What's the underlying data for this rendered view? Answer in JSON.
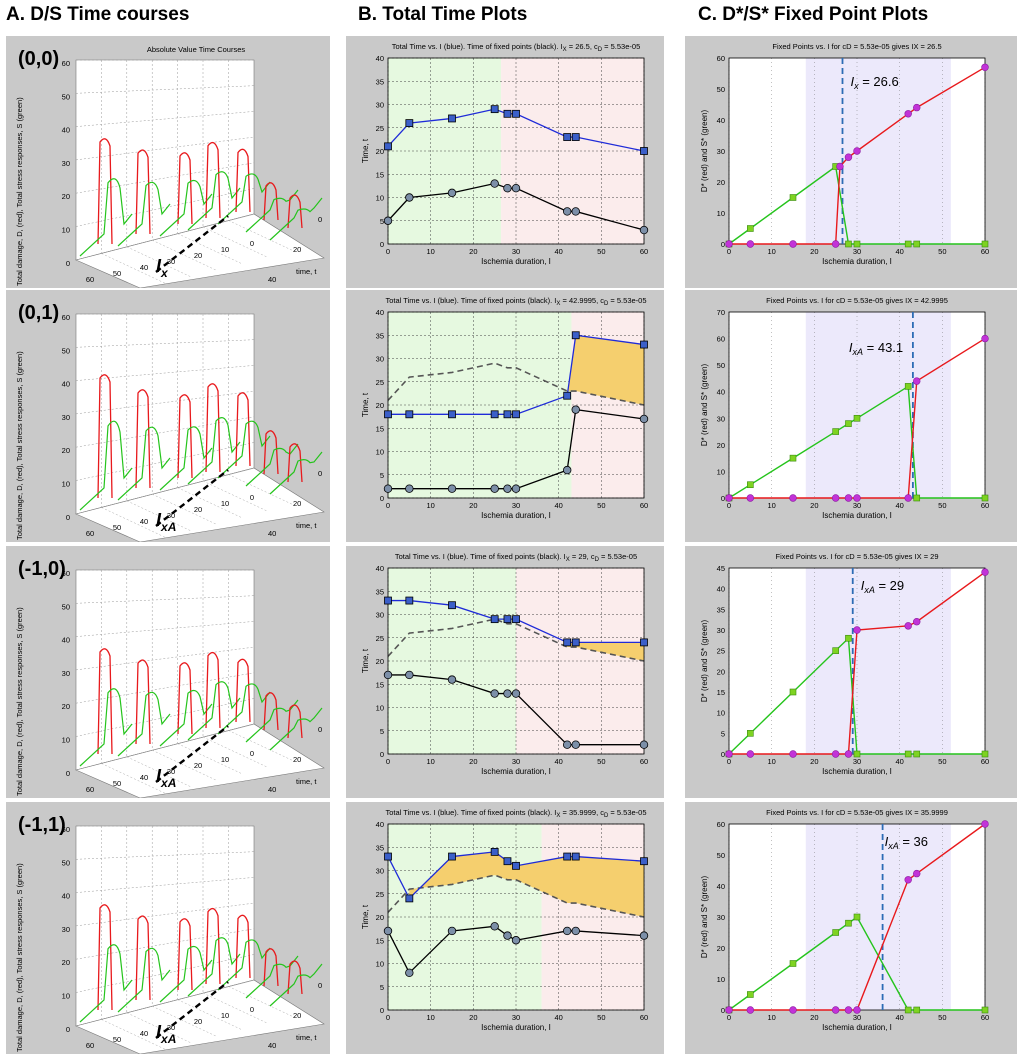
{
  "headers": {
    "col_a": "A. D/S Time courses",
    "col_b": "B. Total Time Plots",
    "col_c": "C. D*/S* Fixed Point Plots"
  },
  "colors": {
    "damage_red": "#e8191c",
    "stress_green": "#25c41c",
    "total_blue": "#1f2bd8",
    "fixed_black": "#000000",
    "marker_blue": "#3b5fc9",
    "marker_gray": "#7c8fa8",
    "marker_magenta": "#c233d8",
    "marker_lime": "#7ed321",
    "region_green": "#e6f9e0",
    "region_pink": "#fbecec",
    "region_lavender": "#ece9fb",
    "fill_orange": "#f5cf6e",
    "vline_blue": "#2d6cb5",
    "dashed_gray": "#555555"
  },
  "panel_a": {
    "title": "Absolute Value Time Courses",
    "zlabel": "Total damage, D, (red), Total stress responses, S (green)",
    "xlabel": "min of ischemia, injury, I",
    "ylabel": "time, t",
    "z_ticks": [
      "60",
      "50",
      "40",
      "30",
      "20",
      "10",
      "0"
    ],
    "x_ticks": [
      "60",
      "50",
      "40",
      "30",
      "20",
      "10",
      "0"
    ],
    "y_ticks": [
      "0",
      "20",
      "40"
    ]
  },
  "panel_b": {
    "xlabel": "Ischemia duration, I",
    "ylabel": "Time, t",
    "x_ticks": [
      "0",
      "10",
      "20",
      "30",
      "40",
      "50",
      "60"
    ]
  },
  "panel_c": {
    "xlabel": "Ischemia duration, I",
    "ylabel": "D* (red) and S* (green)",
    "x_ticks": [
      "0",
      "10",
      "20",
      "30",
      "40",
      "50",
      "60"
    ]
  },
  "rows": [
    {
      "label": "(0,0)",
      "a_annot_main": "I",
      "a_annot_sub": "x",
      "b_title": "Total Time vs. I (blue).  Time of fixed points (black).  I",
      "b_title_sub": "X",
      "b_title_rest": " = 26.5,  c",
      "b_title_sub2": "D",
      "b_title_end": " = 5.53e-05",
      "c_title": "Fixed Points vs. I for cD = 5.53e-05 gives IX = 26.5",
      "c_annot_main": "I",
      "c_annot_sub": "x",
      "c_annot_val": " = 26.6"
    },
    {
      "label": "(0,1)",
      "a_annot_main": "I",
      "a_annot_sub": "xA",
      "b_title": "Total Time vs. I (blue).  Time of fixed points (black).  I",
      "b_title_sub": "X",
      "b_title_rest": " = 42.9995,  c",
      "b_title_sub2": "D",
      "b_title_end": " = 5.53e-05",
      "c_title": "Fixed Points vs. I for cD = 5.53e-05 gives IX = 42.9995",
      "c_annot_main": "I",
      "c_annot_sub": "xA",
      "c_annot_val": " = 43.1"
    },
    {
      "label": "(-1,0)",
      "a_annot_main": "I",
      "a_annot_sub": "xA",
      "b_title": "Total Time vs. I (blue).  Time of fixed points (black).  I",
      "b_title_sub": "X",
      "b_title_rest": " = 29,  c",
      "b_title_sub2": "D",
      "b_title_end": " = 5.53e-05",
      "c_title": "Fixed Points vs. I for cD = 5.53e-05 gives IX = 29",
      "c_annot_main": "I",
      "c_annot_sub": "xA",
      "c_annot_val": " = 29"
    },
    {
      "label": "(-1,1)",
      "a_annot_main": "I",
      "a_annot_sub": "xA",
      "b_title": "Total Time vs. I (blue).  Time of fixed points (black).  I",
      "b_title_sub": "X",
      "b_title_rest": " = 35.9999,  c",
      "b_title_sub2": "D",
      "b_title_end": " = 5.53e-05",
      "c_title": "Fixed Points vs. I for cD = 5.53e-05 gives IX = 35.9999",
      "c_annot_main": "I",
      "c_annot_sub": "xA",
      "c_annot_val": " = 36"
    }
  ],
  "chart_data": [
    {
      "panel": "B1",
      "type": "line",
      "xlim": [
        0,
        60
      ],
      "ylim": [
        0,
        40
      ],
      "y_ticks": [
        0,
        5,
        10,
        15,
        20,
        25,
        30,
        35,
        40
      ],
      "region_split": 26.5,
      "x": [
        0,
        5,
        15,
        25,
        28,
        30,
        42,
        44,
        60
      ],
      "series": [
        {
          "name": "Total time (blue)",
          "values": [
            21,
            26,
            27,
            29,
            28,
            28,
            23,
            23,
            20
          ]
        },
        {
          "name": "Time of fixed points (black)",
          "values": [
            5,
            10,
            11,
            13,
            12,
            12,
            7,
            7,
            3
          ]
        }
      ]
    },
    {
      "panel": "B2",
      "type": "line",
      "xlim": [
        0,
        60
      ],
      "ylim": [
        0,
        40
      ],
      "y_ticks": [
        0,
        5,
        10,
        15,
        20,
        25,
        30,
        35,
        40
      ],
      "region_split": 43,
      "x": [
        0,
        5,
        15,
        25,
        28,
        30,
        42,
        44,
        60
      ],
      "series": [
        {
          "name": "Total time (blue)",
          "values": [
            18,
            18,
            18,
            18,
            18,
            18,
            22,
            35,
            33
          ]
        },
        {
          "name": "Time of fixed points (black)",
          "values": [
            2,
            2,
            2,
            2,
            2,
            2,
            6,
            19,
            17
          ]
        },
        {
          "name": "Reference (dashed)",
          "values": [
            21,
            26,
            27,
            29,
            28,
            28,
            23,
            23,
            20
          ]
        }
      ]
    },
    {
      "panel": "B3",
      "type": "line",
      "xlim": [
        0,
        60
      ],
      "ylim": [
        0,
        40
      ],
      "y_ticks": [
        0,
        5,
        10,
        15,
        20,
        25,
        30,
        35,
        40
      ],
      "region_split": 30,
      "x": [
        0,
        5,
        15,
        25,
        28,
        30,
        42,
        44,
        60
      ],
      "series": [
        {
          "name": "Total time (blue)",
          "values": [
            33,
            33,
            32,
            29,
            29,
            29,
            24,
            24,
            24
          ]
        },
        {
          "name": "Time of fixed points (black)",
          "values": [
            17,
            17,
            16,
            13,
            13,
            13,
            2,
            2,
            2
          ]
        },
        {
          "name": "Reference (dashed)",
          "values": [
            21,
            26,
            27,
            29,
            28,
            28,
            23,
            23,
            20
          ]
        }
      ]
    },
    {
      "panel": "B4",
      "type": "line",
      "xlim": [
        0,
        60
      ],
      "ylim": [
        0,
        40
      ],
      "y_ticks": [
        0,
        5,
        10,
        15,
        20,
        25,
        30,
        35,
        40
      ],
      "region_split": 36,
      "x": [
        0,
        5,
        15,
        25,
        28,
        30,
        42,
        44,
        60
      ],
      "series": [
        {
          "name": "Total time (blue)",
          "values": [
            33,
            24,
            33,
            34,
            32,
            31,
            33,
            33,
            32
          ]
        },
        {
          "name": "Time of fixed points (black)",
          "values": [
            17,
            8,
            17,
            18,
            16,
            15,
            17,
            17,
            16
          ]
        },
        {
          "name": "Reference (dashed)",
          "values": [
            21,
            26,
            27,
            29,
            28,
            28,
            23,
            23,
            20
          ]
        }
      ]
    },
    {
      "panel": "C1",
      "type": "line",
      "xlim": [
        0,
        60
      ],
      "ylim": [
        0,
        60
      ],
      "y_ticks": [
        0,
        10,
        20,
        30,
        40,
        50,
        60
      ],
      "vline": 26.6,
      "shade": [
        18,
        52
      ],
      "red_x": [
        0,
        5,
        15,
        25,
        26,
        28,
        30,
        42,
        44,
        60
      ],
      "red_y": [
        0,
        0,
        0,
        0,
        25,
        28,
        30,
        42,
        44,
        57
      ],
      "green_x": [
        0,
        5,
        15,
        25,
        28,
        30,
        42,
        44,
        60
      ],
      "green_y": [
        0,
        5,
        15,
        25,
        0,
        0,
        0,
        0,
        0
      ]
    },
    {
      "panel": "C2",
      "type": "line",
      "xlim": [
        0,
        60
      ],
      "ylim": [
        0,
        70
      ],
      "y_ticks": [
        0,
        10,
        20,
        30,
        40,
        50,
        60,
        70
      ],
      "vline": 43.1,
      "shade": [
        18,
        52
      ],
      "red_x": [
        0,
        5,
        15,
        25,
        28,
        30,
        42,
        44,
        60
      ],
      "red_y": [
        0,
        0,
        0,
        0,
        0,
        0,
        0,
        44,
        60
      ],
      "green_x": [
        0,
        5,
        15,
        25,
        28,
        30,
        42,
        44,
        60
      ],
      "green_y": [
        0,
        5,
        15,
        25,
        28,
        30,
        42,
        0,
        0
      ]
    },
    {
      "panel": "C3",
      "type": "line",
      "xlim": [
        0,
        60
      ],
      "ylim": [
        0,
        45
      ],
      "y_ticks": [
        0,
        5,
        10,
        15,
        20,
        25,
        30,
        35,
        40,
        45
      ],
      "vline": 29,
      "shade": [
        18,
        52
      ],
      "red_x": [
        0,
        5,
        15,
        25,
        28,
        30,
        42,
        44,
        60
      ],
      "red_y": [
        0,
        0,
        0,
        0,
        0,
        30,
        31,
        32,
        44
      ],
      "green_x": [
        0,
        5,
        15,
        25,
        28,
        30,
        42,
        44,
        60
      ],
      "green_y": [
        0,
        5,
        15,
        25,
        28,
        0,
        0,
        0,
        0
      ]
    },
    {
      "panel": "C4",
      "type": "line",
      "xlim": [
        0,
        60
      ],
      "ylim": [
        0,
        60
      ],
      "y_ticks": [
        0,
        10,
        20,
        30,
        40,
        50,
        60
      ],
      "vline": 36,
      "shade": [
        18,
        52
      ],
      "red_x": [
        0,
        5,
        15,
        25,
        28,
        30,
        42,
        44,
        60
      ],
      "red_y": [
        0,
        0,
        0,
        0,
        0,
        0,
        42,
        44,
        60
      ],
      "green_x": [
        0,
        5,
        15,
        25,
        28,
        30,
        42,
        44,
        60
      ],
      "green_y": [
        0,
        5,
        15,
        25,
        28,
        30,
        0,
        0,
        0
      ]
    }
  ]
}
